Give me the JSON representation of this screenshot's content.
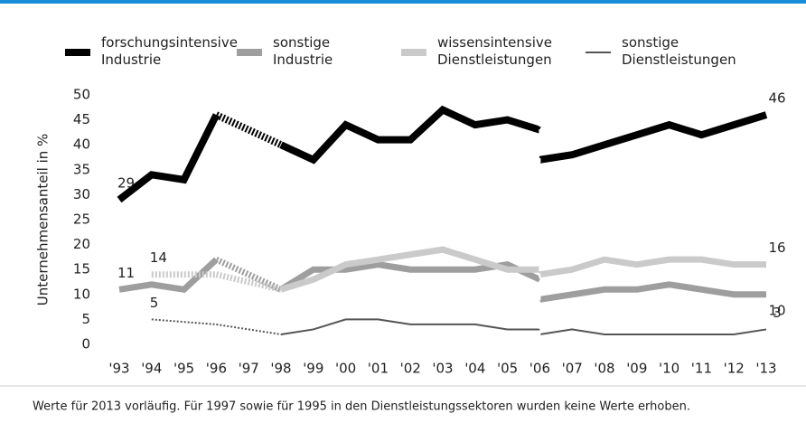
{
  "chart_data": {
    "type": "line",
    "ylabel": "Unternehmensanteil in %",
    "footnote": "Werte für 2013 vorläufig. Für 1997 sowie für 1995 in den Dienstleistungssektoren wurden keine Werte erhoben.",
    "categories": [
      "'93",
      "'94",
      "'95",
      "'96",
      "'97",
      "'98",
      "'99",
      "'00",
      "'01",
      "'02",
      "'03",
      "'04",
      "'05",
      "'06",
      "'07",
      "'08",
      "'09",
      "'10",
      "'11",
      "'12",
      "'13"
    ],
    "ylim": [
      0,
      50
    ],
    "yticks": [
      0,
      5,
      10,
      15,
      20,
      25,
      30,
      35,
      40,
      45,
      50
    ],
    "grid": false,
    "series": [
      {
        "name": "forschungsintensive Industrie",
        "color": "#000000",
        "values": [
          29,
          34,
          33,
          46,
          null,
          40,
          37,
          44,
          41,
          41,
          47,
          44,
          45,
          43,
          null,
          null,
          null,
          null,
          null,
          null,
          null
        ],
        "values_new": [
          null,
          null,
          null,
          null,
          null,
          null,
          null,
          null,
          null,
          null,
          null,
          null,
          null,
          37,
          38,
          40,
          42,
          44,
          42,
          44,
          46
        ]
      },
      {
        "name": "sonstige Industrie",
        "color": "#9e9e9e",
        "values": [
          11,
          12,
          11,
          17,
          null,
          11,
          15,
          15,
          16,
          15,
          15,
          15,
          16,
          13,
          null,
          null,
          null,
          null,
          null,
          null,
          null
        ],
        "values_new": [
          null,
          null,
          null,
          null,
          null,
          null,
          null,
          null,
          null,
          null,
          null,
          null,
          null,
          9,
          10,
          11,
          11,
          12,
          11,
          10,
          10
        ]
      },
      {
        "name": "wissensintensive Dienstleistungen",
        "color": "#cacaca",
        "values": [
          null,
          14,
          null,
          14,
          null,
          11,
          13,
          16,
          17,
          18,
          19,
          17,
          15,
          15,
          null,
          null,
          null,
          null,
          null,
          null,
          null
        ],
        "values_new": [
          null,
          null,
          null,
          null,
          null,
          null,
          null,
          null,
          null,
          null,
          null,
          null,
          null,
          14,
          15,
          17,
          16,
          17,
          17,
          16,
          16
        ]
      },
      {
        "name": "sonstige Dienstleistungen",
        "color": "#555555",
        "values": [
          null,
          5,
          null,
          4,
          null,
          2,
          3,
          5,
          5,
          4,
          4,
          4,
          3,
          3,
          null,
          null,
          null,
          null,
          null,
          null,
          null
        ],
        "values_new": [
          null,
          null,
          null,
          null,
          null,
          null,
          null,
          null,
          null,
          null,
          null,
          null,
          null,
          2,
          3,
          2,
          2,
          2,
          2,
          2,
          3
        ]
      }
    ]
  }
}
